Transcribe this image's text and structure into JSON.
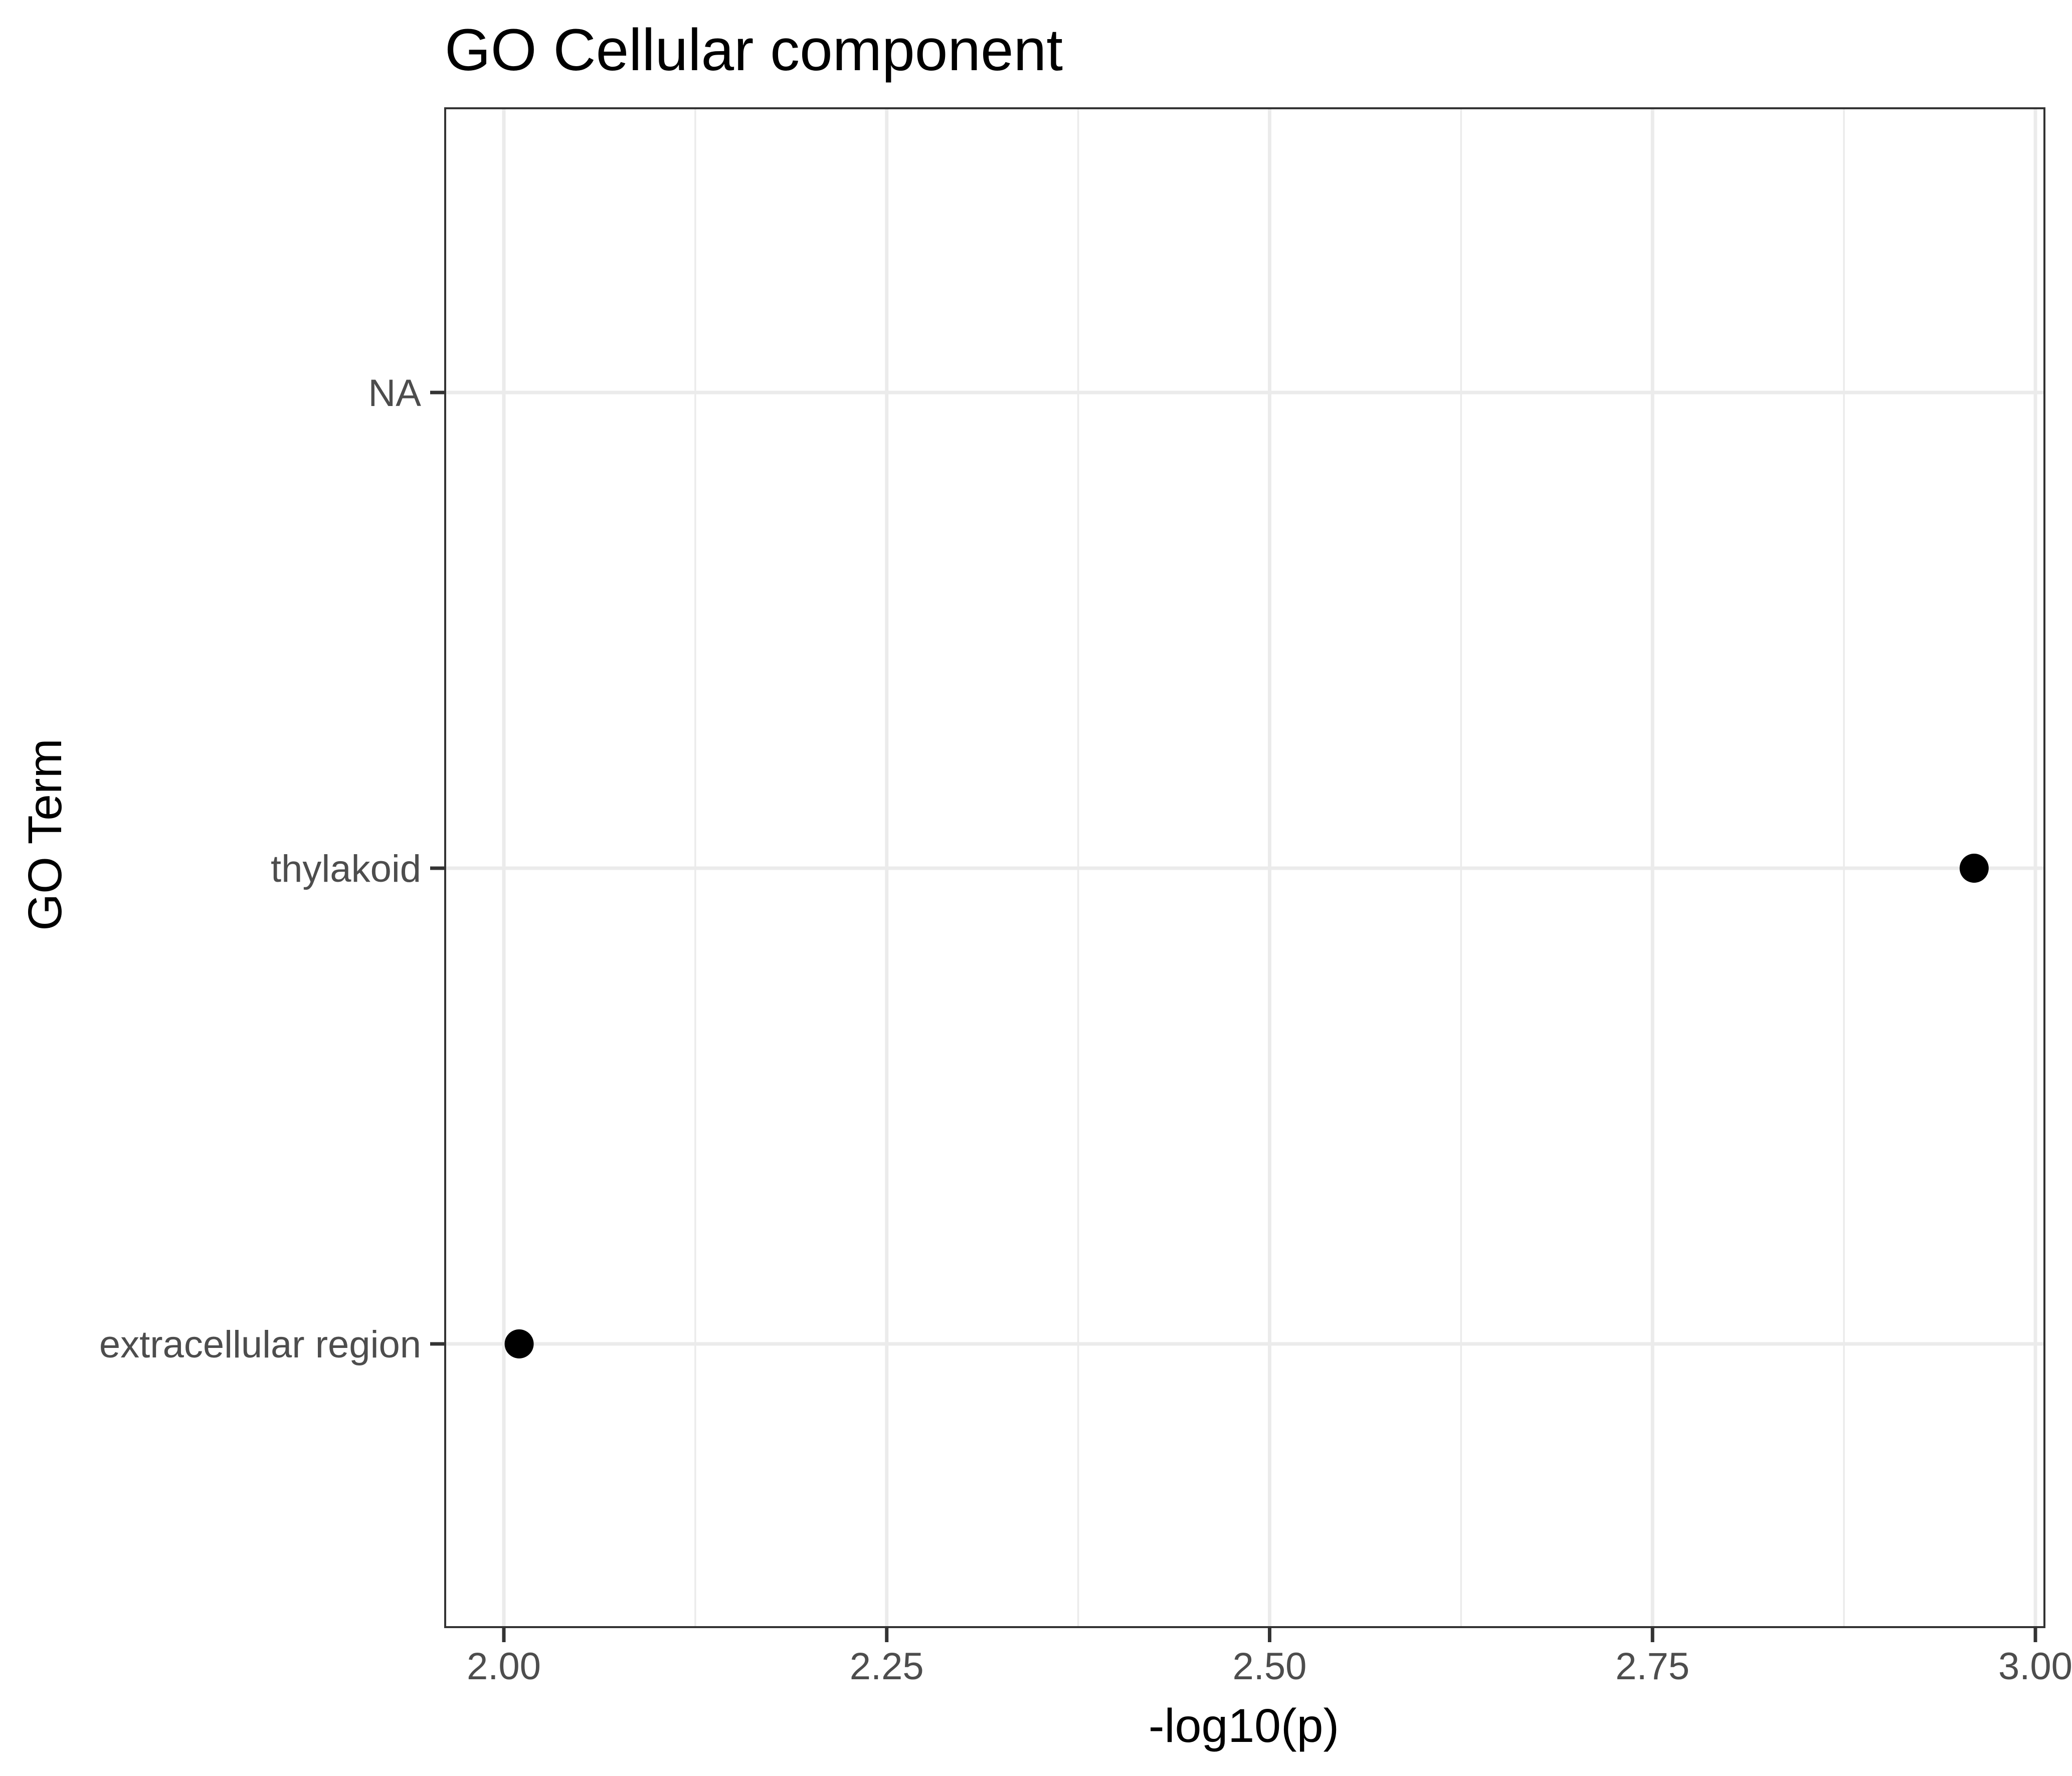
{
  "chart_data": {
    "type": "scatter",
    "title": "GO Cellular component",
    "xlabel": "-log10(p)",
    "ylabel": "GO Term",
    "xlim": [
      1.9,
      3.0
    ],
    "x_ticks": [
      "2.00",
      "2.25",
      "2.50",
      "2.75",
      "3.00"
    ],
    "x_tick_values": [
      2.0,
      2.25,
      2.5,
      2.75,
      3.0
    ],
    "x_minor_values": [
      2.125,
      2.375,
      2.625,
      2.875
    ],
    "categories": [
      "NA",
      "thylakoid",
      "extracellular region"
    ],
    "points": [
      {
        "category": "thylakoid",
        "x": 2.96
      },
      {
        "category": "extracellular region",
        "x": 2.01
      }
    ],
    "grid": true,
    "legend": "none",
    "colors": {
      "point": "#000000",
      "grid": "#ebebeb",
      "axis": "#333333",
      "tick_text": "#4d4d4d"
    }
  }
}
